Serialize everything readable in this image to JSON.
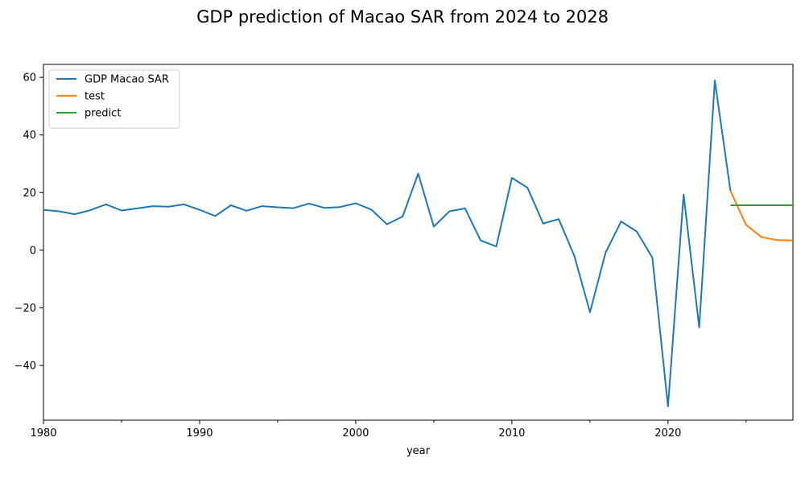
{
  "chart_data": {
    "type": "line",
    "title": "GDP prediction of Macao SAR from 2024 to 2028",
    "xlabel": "year",
    "ylabel": "",
    "xlim": [
      1980,
      2028
    ],
    "ylim": [
      -59,
      64.5
    ],
    "x_major_ticks": [
      1980,
      1990,
      2000,
      2010,
      2020
    ],
    "x_minor_ticks": [
      1985,
      1995,
      2005,
      2015,
      2025
    ],
    "y_ticks": [
      -40,
      -20,
      0,
      20,
      40,
      60
    ],
    "y_tick_labels": [
      "−40",
      "−20",
      "0",
      "20",
      "40",
      "60"
    ],
    "grid": false,
    "legend_position": "top-left",
    "series": [
      {
        "name": "GDP Macao SAR",
        "color": "#1f77b4",
        "x": [
          1980,
          1981,
          1982,
          1983,
          1984,
          1985,
          1986,
          1987,
          1988,
          1989,
          1990,
          1991,
          1992,
          1993,
          1994,
          1995,
          1996,
          1997,
          1998,
          1999,
          2000,
          2001,
          2002,
          2003,
          2004,
          2005,
          2006,
          2007,
          2008,
          2009,
          2010,
          2011,
          2012,
          2013,
          2014,
          2015,
          2016,
          2017,
          2018,
          2019,
          2020,
          2021,
          2022,
          2023,
          2024
        ],
        "values": [
          14,
          13.5,
          12.5,
          13.9,
          15.9,
          13.8,
          14.5,
          15.3,
          15.1,
          15.9,
          14,
          11.9,
          15.6,
          13.7,
          15.3,
          14.9,
          14.6,
          16.2,
          14.7,
          15,
          16.3,
          14.1,
          9,
          11.7,
          26.6,
          8.2,
          13.5,
          14.5,
          3.4,
          1.3,
          25.1,
          21.7,
          9.3,
          10.8,
          -2,
          -21.5,
          -0.8,
          10,
          6.5,
          -2.6,
          -54.2,
          19.3,
          -26.8,
          58.9,
          20.6
        ]
      },
      {
        "name": "test",
        "color": "#ff7f0e",
        "x": [
          2024,
          2025,
          2026,
          2027,
          2028
        ],
        "values": [
          20.6,
          8.8,
          4.5,
          3.5,
          3.4
        ]
      },
      {
        "name": "predict",
        "color": "#2ca02c",
        "x": [
          2024,
          2025,
          2026,
          2027,
          2028
        ],
        "values": [
          15.6,
          15.6,
          15.6,
          15.6,
          15.6
        ]
      }
    ]
  }
}
